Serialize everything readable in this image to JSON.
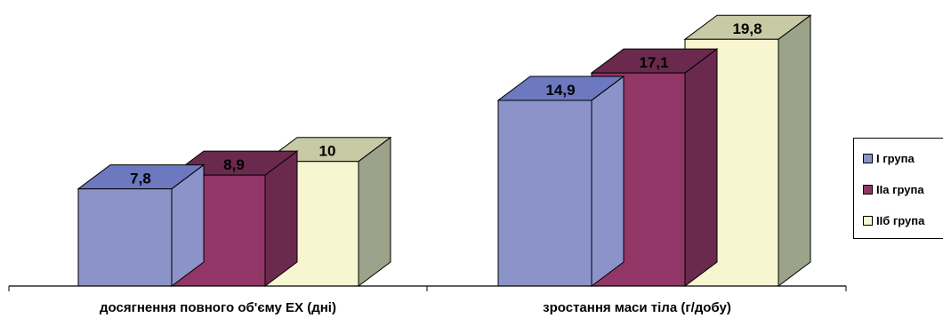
{
  "chart_data": {
    "type": "bar",
    "categories": [
      "досягнення повного об'єму ЕХ (дні)",
      "зростання маси тіла (г/добу)"
    ],
    "series": [
      {
        "name": "І група",
        "values": [
          7.8,
          14.9
        ],
        "labels": [
          "7,8",
          "14,9"
        ],
        "color": "#8b93c9"
      },
      {
        "name": "ІІа група",
        "values": [
          8.9,
          17.1
        ],
        "labels": [
          "8,9",
          "17,1"
        ],
        "color": "#913666"
      },
      {
        "name": "ІІб група",
        "values": [
          10,
          19.8
        ],
        "labels": [
          "10",
          "19,8"
        ],
        "color": "#f8f6d0"
      }
    ],
    "legend_position": "right",
    "grid": false
  }
}
